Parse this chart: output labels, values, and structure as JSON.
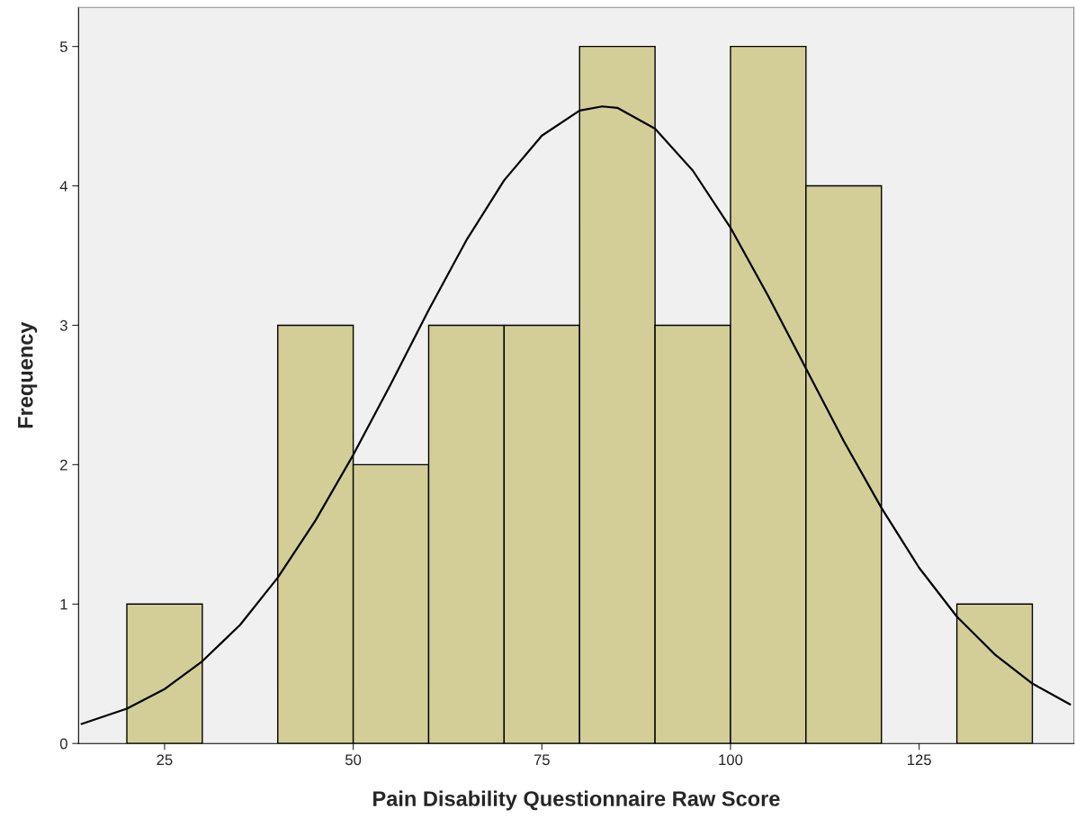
{
  "chart_data": {
    "type": "histogram",
    "xlabel": "Pain Disability Questionnaire Raw Score",
    "ylabel": "Frequency",
    "series": [
      {
        "type": "histogram",
        "color": "#d3ce98",
        "bins": [
          20,
          30,
          40,
          50,
          60,
          70,
          80,
          90,
          100,
          110,
          120,
          130,
          140
        ],
        "values": [
          1,
          0,
          3,
          2,
          3,
          3,
          5,
          3,
          5,
          4,
          0,
          1
        ]
      },
      {
        "type": "line",
        "color": "#000000",
        "x": [
          14,
          20,
          25,
          30,
          35,
          40,
          45,
          50,
          55,
          60,
          65,
          70,
          75,
          80,
          83,
          85,
          90,
          95,
          100,
          105,
          110,
          115,
          120,
          125,
          130,
          135,
          140,
          145
        ],
        "values": [
          0.14,
          0.25,
          0.39,
          0.59,
          0.85,
          1.19,
          1.6,
          2.07,
          2.58,
          3.11,
          3.61,
          4.04,
          4.36,
          4.54,
          4.57,
          4.56,
          4.41,
          4.11,
          3.7,
          3.21,
          2.69,
          2.17,
          1.69,
          1.26,
          0.91,
          0.64,
          0.43,
          0.28
        ]
      }
    ],
    "xlim": [
      13.6,
      145.5
    ],
    "xticks": [
      25,
      50,
      75,
      100,
      125
    ],
    "ylim": [
      0,
      5.28
    ],
    "yticks": [
      0,
      1,
      2,
      3,
      4,
      5
    ],
    "grid": false,
    "legend": false
  }
}
